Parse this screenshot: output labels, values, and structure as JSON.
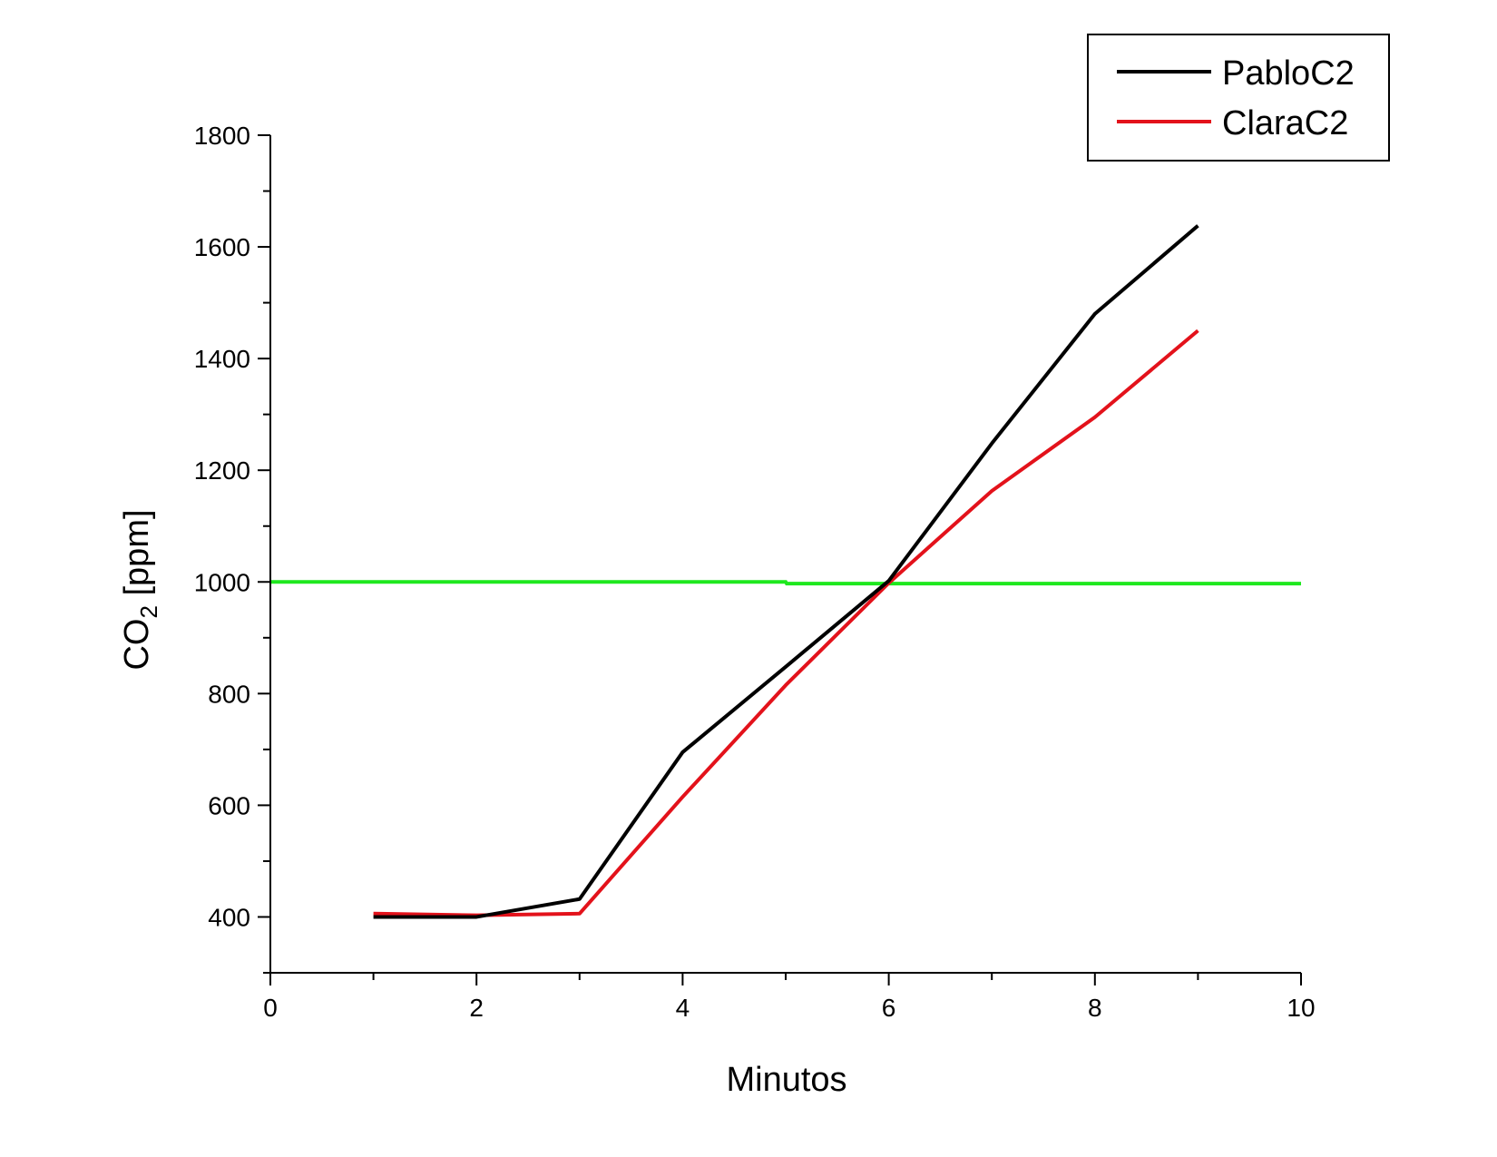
{
  "chart_data": {
    "type": "line",
    "xlabel": "Minutos",
    "ylabel": {
      "base": "CO",
      "subscript": "2",
      "suffix": " [ppm]"
    },
    "xlim": [
      0,
      10
    ],
    "ylim": [
      300,
      1800
    ],
    "x_ticks": [
      0,
      2,
      4,
      6,
      8,
      10
    ],
    "x_minor_ticks": [
      1,
      3,
      5,
      7,
      9
    ],
    "y_ticks": [
      400,
      600,
      800,
      1000,
      1200,
      1400,
      1600,
      1800
    ],
    "y_minor_ticks": [
      300,
      500,
      700,
      900,
      1100,
      1300,
      1500,
      1700
    ],
    "grid": false,
    "legend_position": "top-right",
    "series": [
      {
        "name": "PabloC2",
        "color": "#000000",
        "x": [
          1,
          2,
          3,
          4,
          5,
          6,
          7,
          8,
          9
        ],
        "y": [
          400,
          400,
          432,
          695,
          848,
          1002,
          1248,
          1480,
          1638
        ]
      },
      {
        "name": "ClaraC2",
        "color": "#e3121b",
        "x": [
          1,
          2,
          3,
          4,
          5,
          6,
          7,
          8,
          9
        ],
        "y": [
          406,
          403,
          406,
          615,
          815,
          998,
          1163,
          1295,
          1450
        ]
      }
    ],
    "reference_line": {
      "color": "#1ee81e",
      "x": [
        0,
        5,
        5.01,
        10
      ],
      "y": [
        1000,
        1000,
        997,
        997
      ]
    }
  }
}
